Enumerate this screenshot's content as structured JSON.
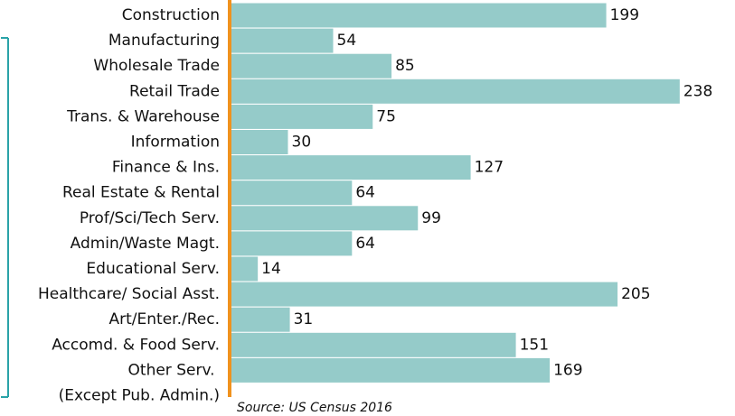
{
  "chart_data": {
    "type": "bar",
    "orientation": "horizontal",
    "categories": [
      "Construction",
      "Manufacturing",
      "Wholesale Trade",
      "Retail Trade",
      "Trans. & Warehouse",
      "Information",
      "Finance & Ins.",
      "Real Estate & Rental",
      "Prof/Sci/Tech Serv.",
      "Admin/Waste Magt.",
      "Educational Serv.",
      "Healthcare/ Social Asst.",
      "Art/Enter./Rec.",
      "Accomd. & Food Serv.",
      "Other Serv. (Except Pub. Admin.)"
    ],
    "values": [
      199,
      54,
      85,
      238,
      75,
      30,
      127,
      64,
      99,
      64,
      14,
      205,
      31,
      151,
      169
    ],
    "color": "#95cbc9",
    "axis_color": "#f0921e",
    "xlim": [
      0,
      240
    ],
    "source": "Source: US Census 2016"
  }
}
